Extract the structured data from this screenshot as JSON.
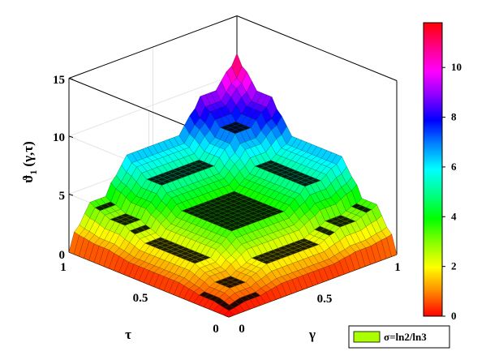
{
  "chart_data": {
    "type": "surface3d",
    "title": "",
    "xlabel": "γ",
    "ylabel": "τ",
    "zlabel": "ϑ_1 (γ,τ)",
    "zlabel_main": "ϑ",
    "zlabel_sub": "1",
    "zlabel_args": "(γ,τ)",
    "xlim": [
      0,
      1
    ],
    "ylim": [
      0,
      1
    ],
    "zlim": [
      0,
      15
    ],
    "x_ticks": [
      "0",
      "0.5",
      "1"
    ],
    "y_ticks": [
      "0",
      "0.5",
      "1"
    ],
    "z_ticks": [
      "0",
      "5",
      "10",
      "15"
    ],
    "colorbar": {
      "range": [
        0,
        11.8
      ],
      "ticks": [
        "0",
        "2",
        "4",
        "6",
        "8",
        "10"
      ],
      "colormap": [
        "#ff0000",
        "#ff8800",
        "#ffff00",
        "#88ff00",
        "#00ff00",
        "#00ff88",
        "#00ffff",
        "#0088ff",
        "#0000ff",
        "#8800ff",
        "#ff00ff",
        "#ff0088",
        "#ff0000"
      ]
    },
    "legend": {
      "label": "σ=ln2/ln3",
      "color": "#aaff00",
      "position": "bottom-right"
    },
    "surface": {
      "description": "Fractal staircase surface on a 33x33 grid over [0,1]x[0,1]; z peaks at about 11.8 at γ=1, τ=1 and falls to 0 along the γ=0 and τ=0 edges",
      "z_max": 11.8,
      "grid_resolution": 33
    }
  }
}
